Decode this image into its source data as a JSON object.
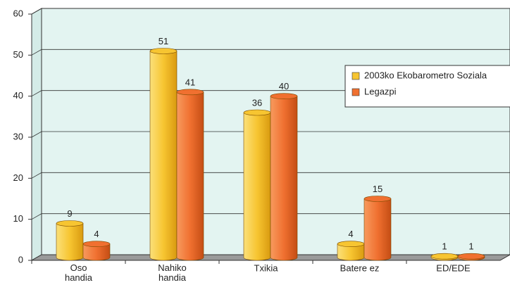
{
  "chart_data": {
    "type": "bar",
    "categories": [
      "Oso\nhandia",
      "Nahiko\nhandia",
      "Txikia",
      "Batere ez",
      "ED/EDE"
    ],
    "series": [
      {
        "name": "2003ko Ekobarometro Soziala",
        "color": "#f7c531",
        "values": [
          9,
          51,
          36,
          4,
          1
        ]
      },
      {
        "name": "Legazpi",
        "color": "#f07030",
        "values": [
          4,
          41,
          40,
          15,
          1
        ]
      }
    ],
    "ylim": [
      0,
      60
    ],
    "yticks": [
      0,
      10,
      20,
      30,
      40,
      50,
      60
    ],
    "grid": true,
    "legend": "right"
  }
}
